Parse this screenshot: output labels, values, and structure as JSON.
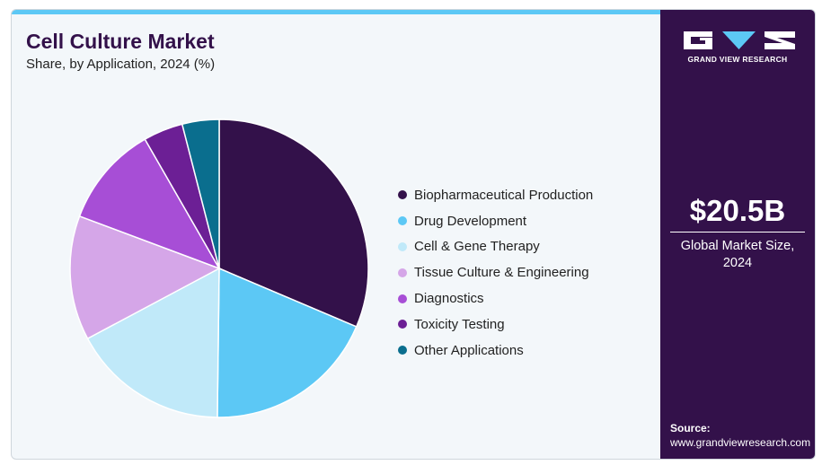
{
  "header": {
    "title": "Cell Culture Market",
    "subtitle": "Share, by Application, 2024 (%)"
  },
  "chart_data": {
    "type": "pie",
    "title": "Cell Culture Market",
    "subtitle": "Share, by Application, 2024 (%)",
    "legend_position": "right",
    "series": [
      {
        "name": "Biopharmaceutical Production",
        "value": 31.4,
        "color": "#33114a"
      },
      {
        "name": "Drug Development",
        "value": 18.8,
        "color": "#5cc8f5"
      },
      {
        "name": "Cell & Gene Therapy",
        "value": 17.0,
        "color": "#c0e9f9"
      },
      {
        "name": "Tissue Culture & Engineering",
        "value": 13.5,
        "color": "#d5a6e8"
      },
      {
        "name": "Diagnostics",
        "value": 11.0,
        "color": "#a74ed6"
      },
      {
        "name": "Toxicity Testing",
        "value": 4.3,
        "color": "#6c1f95"
      },
      {
        "name": "Other Applications",
        "value": 4.0,
        "color": "#0a6e8e"
      }
    ]
  },
  "sidebar": {
    "brand": "GRAND VIEW RESEARCH",
    "market_size": "$20.5B",
    "market_size_label": "Global Market Size,\n2024",
    "source_label": "Source:",
    "source_url": "www.grandviewresearch.com",
    "colors": {
      "background": "#33114a",
      "accent": "#5cc8f5"
    }
  }
}
